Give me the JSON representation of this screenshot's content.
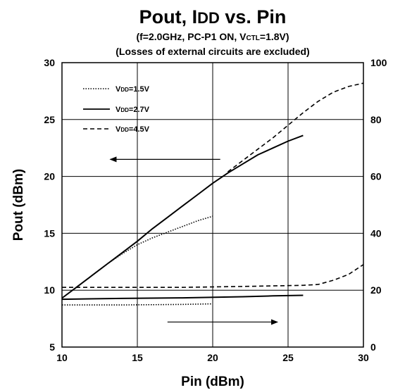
{
  "chart_data": {
    "type": "line",
    "title": "Pout, IDD vs. Pin",
    "subtitle": "(f=2.0GHz, PC-P1 ON, VCTL=1.8V)",
    "subtitle2": "(Losses of external circuits are excluded)",
    "xlabel": "Pin (dBm)",
    "ylabel": "Pout (dBm)",
    "xlim": [
      10,
      30
    ],
    "ylim": [
      5,
      30
    ],
    "y2lim": [
      0,
      100
    ],
    "x_ticks": [
      "10",
      "15",
      "20",
      "25",
      "30"
    ],
    "y_ticks": [
      "5",
      "10",
      "15",
      "20",
      "25",
      "30"
    ],
    "y2_ticks": [
      "0",
      "20",
      "40",
      "60",
      "80",
      "100"
    ],
    "grid": true,
    "legend_position": "top-left",
    "series": [
      {
        "name": "VDD=1.5V",
        "quantity": "Pout",
        "dash": "dotted",
        "x": [
          10,
          11,
          12,
          13,
          14,
          15,
          16,
          17,
          18,
          19,
          20
        ],
        "y": [
          9.3,
          10.3,
          11.3,
          12.3,
          13.2,
          14.0,
          14.6,
          15.1,
          15.6,
          16.1,
          16.5
        ]
      },
      {
        "name": "VDD=2.7V",
        "quantity": "Pout",
        "dash": "solid",
        "x": [
          10,
          11,
          12,
          13,
          14,
          15,
          16,
          17,
          18,
          19,
          20,
          21,
          22,
          23,
          24,
          25,
          26
        ],
        "y": [
          9.3,
          10.3,
          11.3,
          12.3,
          13.3,
          14.3,
          15.4,
          16.4,
          17.4,
          18.4,
          19.4,
          20.3,
          21.1,
          21.9,
          22.5,
          23.1,
          23.6
        ]
      },
      {
        "name": "VDD=4.5V",
        "quantity": "Pout",
        "dash": "dashed",
        "x": [
          21,
          22,
          23,
          24,
          25,
          26,
          27,
          28,
          29,
          30
        ],
        "y": [
          20.4,
          21.4,
          22.4,
          23.4,
          24.5,
          25.6,
          26.6,
          27.4,
          27.9,
          28.2
        ]
      },
      {
        "name": "VDD=1.5V",
        "quantity": "IDD",
        "dash": "dotted",
        "x": [
          10,
          12,
          14,
          16,
          18,
          20
        ],
        "y2": [
          14.8,
          14.8,
          14.8,
          14.9,
          15.0,
          15.2
        ]
      },
      {
        "name": "VDD=2.7V",
        "quantity": "IDD",
        "dash": "solid",
        "x": [
          10,
          14,
          18,
          22,
          24,
          26
        ],
        "y2": [
          16.8,
          17.1,
          17.3,
          17.7,
          18.0,
          18.2
        ]
      },
      {
        "name": "VDD=4.5V",
        "quantity": "IDD",
        "dash": "dashed",
        "x": [
          10,
          14,
          18,
          22,
          26,
          27,
          28,
          29,
          30
        ],
        "y2": [
          21.0,
          21.0,
          21.0,
          21.3,
          21.7,
          22.0,
          23.5,
          25.5,
          29.0
        ]
      }
    ],
    "annotations": [
      {
        "type": "arrow",
        "direction": "left",
        "from": [
          20.5,
          21.5
        ],
        "to": [
          13.2,
          21.5
        ],
        "refers_to": "left axis"
      },
      {
        "type": "arrow",
        "direction": "right",
        "from": [
          17,
          7.2
        ],
        "to": [
          24.3,
          7.2
        ],
        "refers_to": "right axis"
      }
    ]
  },
  "colors": {
    "line": "#000000",
    "grid": "#000000",
    "background": "#ffffff"
  }
}
